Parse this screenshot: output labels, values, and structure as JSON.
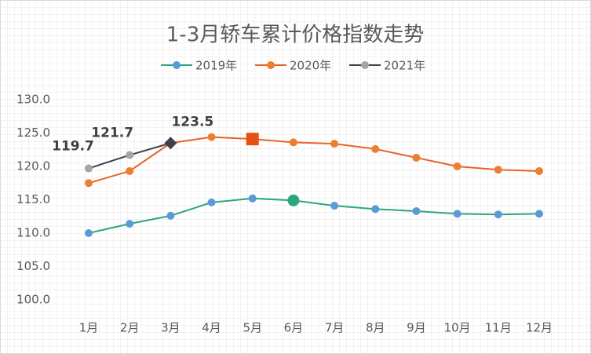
{
  "chart_data": {
    "type": "line",
    "title": "1-3月轿车累计价格指数走势",
    "categories": [
      "1月",
      "2月",
      "3月",
      "4月",
      "5月",
      "6月",
      "7月",
      "8月",
      "9月",
      "10月",
      "11月",
      "12月"
    ],
    "series": [
      {
        "name": "2019年",
        "color": "#2aa77d",
        "marker_color": "#5b9bd5",
        "values": [
          110.0,
          111.4,
          112.6,
          114.6,
          115.2,
          114.9,
          114.1,
          113.6,
          113.3,
          112.9,
          112.8,
          112.9
        ]
      },
      {
        "name": "2020年",
        "color": "#e8632a",
        "marker_color": "#ed7d31",
        "values": [
          117.5,
          119.3,
          123.5,
          124.4,
          124.1,
          123.6,
          123.4,
          122.6,
          121.3,
          120.0,
          119.5,
          119.3
        ]
      },
      {
        "name": "2021年",
        "color": "#3f3f50",
        "marker_color": "#a5a5a5",
        "values": [
          119.7,
          121.7,
          123.5,
          null,
          null,
          null,
          null,
          null,
          null,
          null,
          null,
          null
        ],
        "value_labels": [
          "119.7",
          "121.7",
          "123.5",
          null,
          null,
          null,
          null,
          null,
          null,
          null,
          null,
          null
        ]
      }
    ],
    "ylim": [
      100,
      130
    ],
    "yticks": [
      {
        "value": 100,
        "label": "100.0"
      },
      {
        "value": 105,
        "label": "105.0"
      },
      {
        "value": 110,
        "label": "110.0"
      },
      {
        "value": 115,
        "label": "115.0"
      },
      {
        "value": 120,
        "label": "120.0"
      },
      {
        "value": 125,
        "label": "125.0"
      },
      {
        "value": 130,
        "label": "130.0"
      }
    ],
    "legend": "top"
  }
}
